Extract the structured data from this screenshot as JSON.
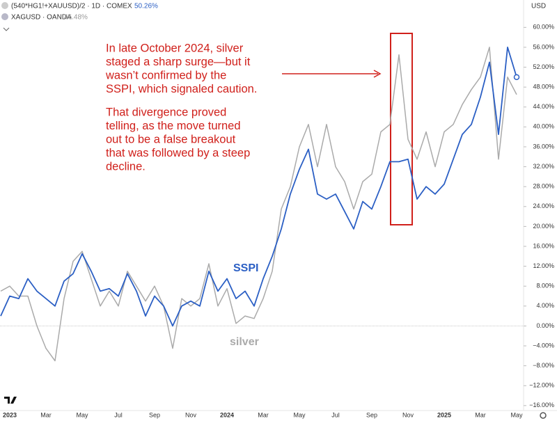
{
  "header": {
    "symbol": "(540*HG1!+XAUUSD)/2 · 1D · COMEX",
    "symbol_value": "50.26%",
    "compare": "XAGUSD · OANDA",
    "compare_value": "46.48%",
    "currency": "USD"
  },
  "chart_data": {
    "type": "line",
    "annotation": [
      "In late October 2024, silver",
      "staged a sharp surge—but it",
      "wasn’t confirmed by the",
      "SSPI, which signaled caution.",
      "That divergence proved",
      "telling, as the move turned",
      "out to be a false breakout",
      "that was followed by a steep",
      "decline."
    ],
    "categories": [
      null,
      "2023",
      null,
      null,
      null,
      "Mar",
      null,
      null,
      null,
      "May",
      null,
      null,
      null,
      "Jul",
      null,
      null,
      null,
      "Sep",
      null,
      null,
      null,
      "Nov",
      null,
      null,
      null,
      "2024",
      null,
      null,
      null,
      "Mar",
      null,
      null,
      null,
      "May",
      null,
      null,
      null,
      "Jul",
      null,
      null,
      null,
      "Sep",
      null,
      null,
      null,
      "Nov",
      null,
      null,
      null,
      "2025",
      null,
      null,
      null,
      "Mar",
      null,
      null,
      null,
      "May"
    ],
    "series": [
      {
        "name": "silver",
        "color": "#aaaaaa",
        "values": [
          7,
          8,
          6,
          6,
          0,
          -4.5,
          -7,
          5.5,
          13,
          15,
          9.5,
          4,
          7,
          4,
          11,
          8,
          5,
          8,
          4,
          -4.5,
          5.5,
          4,
          5.5,
          12.5,
          4,
          7.5,
          0.5,
          2,
          1.5,
          5.5,
          11,
          23.5,
          28,
          36,
          40.5,
          32,
          40.5,
          32,
          29,
          23.5,
          29,
          30.5,
          39,
          40.5,
          54.5,
          37.5,
          33.5,
          39,
          32,
          39,
          40.5,
          44.5,
          47.5,
          50,
          56,
          33.5,
          50,
          46.5
        ]
      },
      {
        "name": "SSPI",
        "color": "#2b5fc4",
        "values": [
          2,
          6,
          5.5,
          9.5,
          7,
          5.5,
          4,
          9,
          10.5,
          14.5,
          11,
          7,
          7.5,
          6,
          10.5,
          7,
          2,
          6,
          4,
          0,
          4,
          5,
          4,
          11,
          7,
          9.5,
          5.5,
          7,
          4,
          9.5,
          14,
          19.5,
          26.5,
          31.5,
          35.5,
          26.5,
          25.5,
          26.5,
          23,
          19.5,
          25,
          23.5,
          28,
          33,
          33,
          33.5,
          25.5,
          28,
          26.5,
          28.5,
          33.5,
          38.5,
          40.5,
          46,
          53,
          38.5,
          56,
          50
        ]
      }
    ],
    "ylim": [
      -17,
      65.5
    ],
    "yticks": [
      {
        "value": 60,
        "label": "60.00%"
      },
      {
        "value": 56,
        "label": "56.00%"
      },
      {
        "value": 52,
        "label": "52.00%"
      },
      {
        "value": 48,
        "label": "48.00%"
      },
      {
        "value": 44,
        "label": "44.00%"
      },
      {
        "value": 40,
        "label": "40.00%"
      },
      {
        "value": 36,
        "label": "36.00%"
      },
      {
        "value": 32,
        "label": "32.00%"
      },
      {
        "value": 28,
        "label": "28.00%"
      },
      {
        "value": 24,
        "label": "24.00%"
      },
      {
        "value": 20,
        "label": "20.00%"
      },
      {
        "value": 16,
        "label": "16.00%"
      },
      {
        "value": 12,
        "label": "12.00%"
      },
      {
        "value": 8,
        "label": "8.00%"
      },
      {
        "value": 4,
        "label": "4.00%"
      },
      {
        "value": 0,
        "label": "0.00%"
      },
      {
        "value": -4,
        "label": "−4.00%"
      },
      {
        "value": -8,
        "label": "−8.00%"
      },
      {
        "value": -12,
        "label": "−12.00%"
      },
      {
        "value": -16,
        "label": "−16.00%"
      }
    ],
    "grid": false
  }
}
